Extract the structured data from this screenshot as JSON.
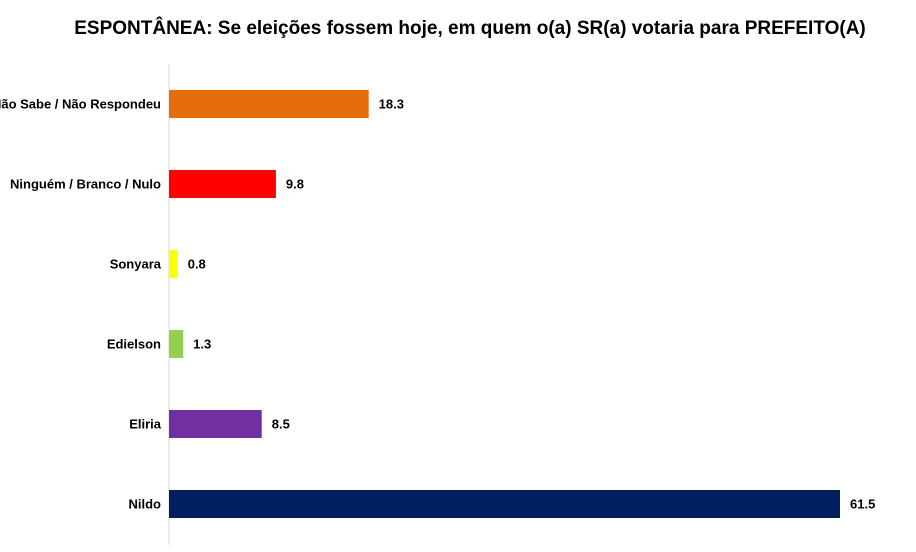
{
  "chart_data": {
    "type": "bar",
    "orientation": "horizontal",
    "title": "ESPONTÂNEA: Se eleições fossem hoje, em quem o(a) SR(a) votaria para PREFEITO(A)",
    "xlabel": "",
    "ylabel": "",
    "xlim": [
      0,
      61.5
    ],
    "grid": false,
    "legend": "none",
    "categories": [
      "Não Sabe / Não Respondeu",
      "Ninguém / Branco / Nulo",
      "Sonyara",
      "Edielson",
      "Eliria",
      "Nildo"
    ],
    "values": [
      18.3,
      9.8,
      0.8,
      1.3,
      8.5,
      61.5
    ],
    "value_labels": [
      "18.3",
      "9.8",
      "0.8",
      "1.3",
      "8.5",
      "61.5"
    ],
    "colors": [
      "#E46C0A",
      "#FF0000",
      "#FFFF00",
      "#92D050",
      "#7030A0",
      "#002060"
    ]
  }
}
